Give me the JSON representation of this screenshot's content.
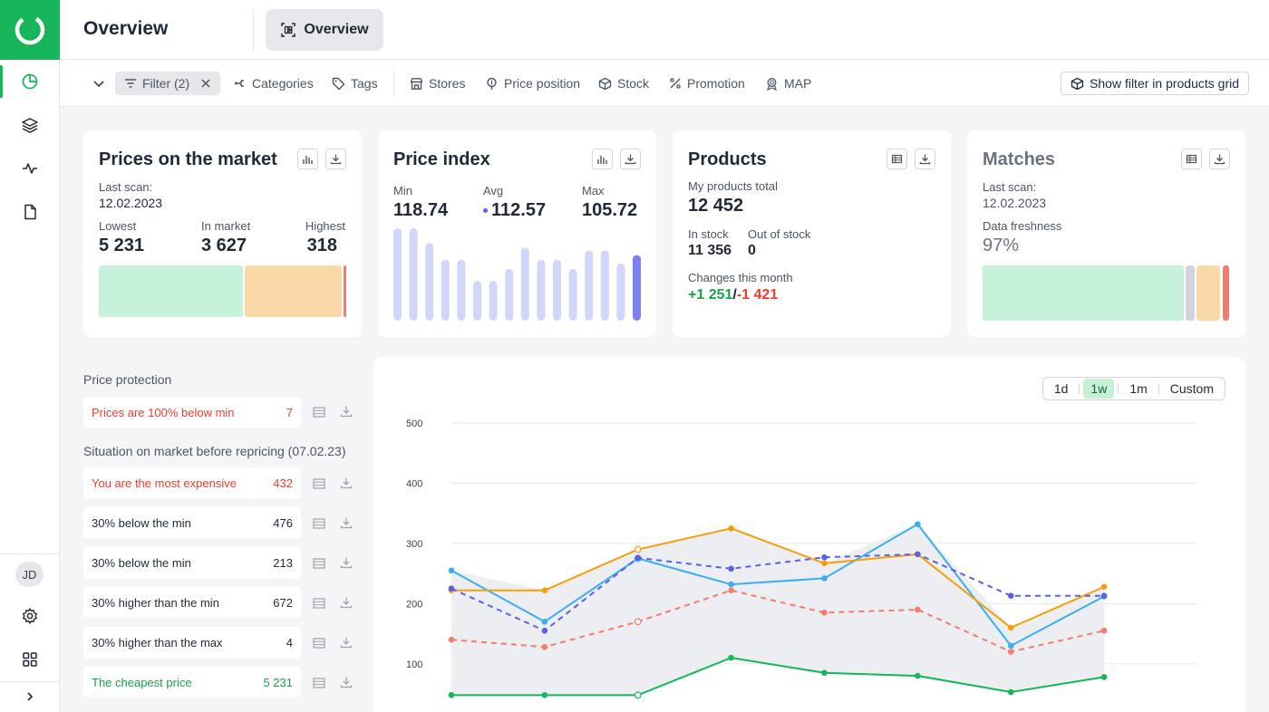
{
  "header": {
    "title": "Overview",
    "tab_label": "Overview"
  },
  "sidebar": {
    "avatar": "JD"
  },
  "filterbar": {
    "filter_label": "Filter (2)",
    "items": [
      "Categories",
      "Tags",
      "Stores",
      "Price position",
      "Stock",
      "Promotion",
      "MAP"
    ],
    "show_filter_label": "Show filter in products grid"
  },
  "cards": {
    "prices_market": {
      "title": "Prices on the market",
      "last_scan_label": "Last scan:",
      "last_scan_value": "12.02.2023",
      "lowest_label": "Lowest",
      "lowest_value": "5 231",
      "in_market_label": "In market",
      "in_market_value": "3 627",
      "highest_label": "Highest",
      "highest_value": "318"
    },
    "price_index": {
      "title": "Price index",
      "min_label": "Min",
      "min_value": "118.74",
      "avg_label": "Avg",
      "avg_value": "112.57",
      "max_label": "Max",
      "max_value": "105.72",
      "bar_levels": [
        1.0,
        1.0,
        0.84,
        0.66,
        0.66,
        0.43,
        0.43,
        0.56,
        0.79,
        0.66,
        0.66,
        0.56,
        0.76,
        0.76,
        0.62,
        0.71
      ]
    },
    "products": {
      "title": "Products",
      "total_label": "My products total",
      "total_value": "12 452",
      "in_stock_label": "In stock",
      "in_stock_value": "11 356",
      "out_stock_label": "Out of stock",
      "out_stock_value": "0",
      "changes_label": "Changes this month",
      "changes_up": "+1 251",
      "changes_sep": "/",
      "changes_down": "-1 421"
    },
    "matches": {
      "title": "Matches",
      "last_scan_label": "Last scan:",
      "last_scan_value": "12.02.2023",
      "freshness_label": "Data freshness",
      "freshness_value": "97%"
    }
  },
  "price_protection": {
    "title": "Price protection",
    "rows": [
      {
        "label": "Prices are 100% below min",
        "count": "7"
      }
    ]
  },
  "situation": {
    "title": "Situation on market before repricing (07.02.23)",
    "rows": [
      {
        "label": "You are the most expensive",
        "count": "432"
      },
      {
        "label": "30% below the min",
        "count": "476"
      },
      {
        "label": "30% below the min",
        "count": "213"
      },
      {
        "label": "30% higher than the min",
        "count": "672"
      },
      {
        "label": "30% higher than the max",
        "count": "4"
      },
      {
        "label": "The cheapest price",
        "count": "5 231"
      }
    ]
  },
  "chart_range": {
    "options": [
      "1d",
      "1w",
      "1m",
      "Custom"
    ],
    "selected": "1w"
  },
  "chart_data": {
    "type": "line",
    "x": [
      1,
      2,
      3,
      4,
      5,
      6,
      7,
      8,
      9
    ],
    "ylim": [
      50,
      500
    ],
    "yticks": [
      100,
      200,
      300,
      400,
      500
    ],
    "grid": true,
    "colors": {
      "blue": "#3baef0",
      "orange": "#f59e0b",
      "indigo": "#5b5fe6",
      "salmon": "#f47c6e",
      "green": "#16b55a",
      "band": "#eceef1"
    },
    "series": [
      {
        "color": "blue",
        "dash": false,
        "values": [
          255,
          170,
          275,
          232,
          242,
          332,
          130,
          212,
          null
        ]
      },
      {
        "color": "orange",
        "dash": false,
        "values": [
          222,
          222,
          290,
          325,
          267,
          282,
          160,
          228,
          null
        ]
      },
      {
        "color": "indigo",
        "dash": true,
        "values": [
          225,
          155,
          276,
          258,
          277,
          282,
          213,
          213,
          null
        ]
      },
      {
        "color": "salmon",
        "dash": true,
        "values": [
          140,
          128,
          170,
          222,
          185,
          190,
          120,
          155,
          null
        ]
      },
      {
        "color": "green",
        "dash": false,
        "values": [
          48,
          48,
          48,
          110,
          85,
          80,
          53,
          78,
          null
        ]
      }
    ],
    "x_points": 9,
    "note_hollow_points": [
      [
        2,
        "orange"
      ],
      [
        2,
        "salmon"
      ],
      [
        2,
        "green"
      ],
      [
        2,
        "blue"
      ]
    ]
  }
}
